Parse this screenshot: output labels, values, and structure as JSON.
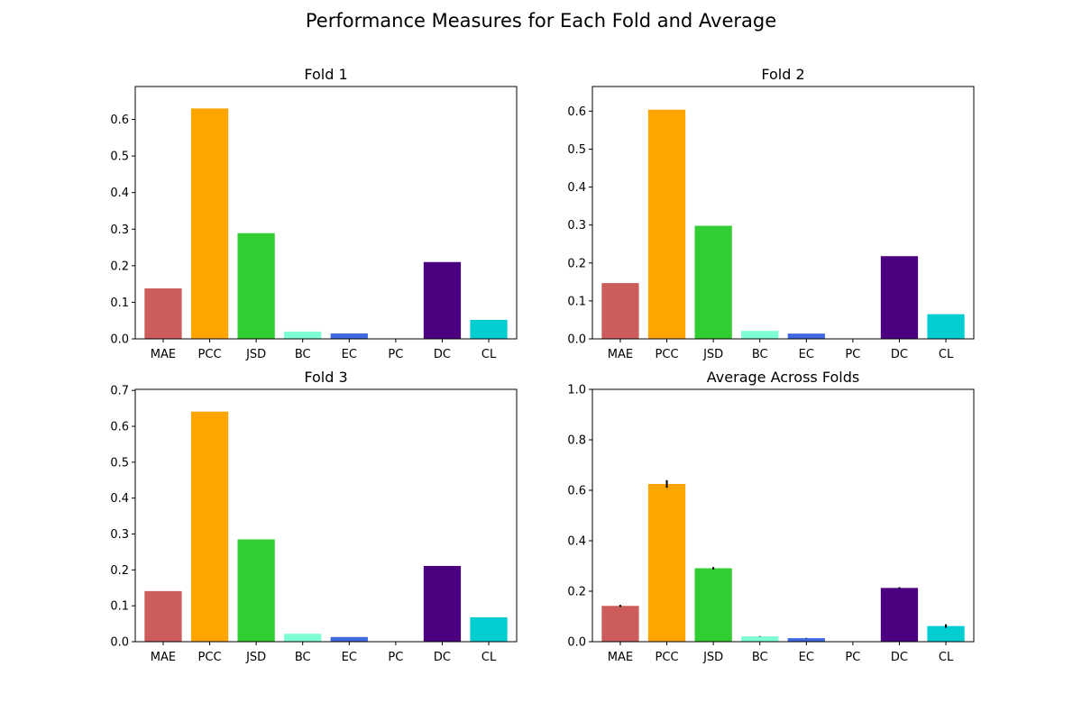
{
  "figure": {
    "title": "Performance Measures for Each Fold and Average"
  },
  "chart_data": [
    {
      "type": "bar",
      "title": "Fold 1",
      "xlabel": "",
      "ylabel": "",
      "categories": [
        "MAE",
        "PCC",
        "JSD",
        "BC",
        "EC",
        "PC",
        "DC",
        "CL"
      ],
      "colors": [
        "#cd5c5c",
        "#ffa500",
        "#32cd32",
        "#7fffd4",
        "#4169e1",
        "#ffc0cb",
        "#4b0082",
        "#00ced1"
      ],
      "values": [
        0.138,
        0.63,
        0.289,
        0.02,
        0.015,
        0.0,
        0.21,
        0.052
      ],
      "ylim": [
        0,
        0.69
      ],
      "yticks": [
        0.0,
        0.1,
        0.2,
        0.3,
        0.4,
        0.5,
        0.6
      ],
      "yticklabels": [
        "0.0",
        "0.1",
        "0.2",
        "0.3",
        "0.4",
        "0.5",
        "0.6"
      ],
      "grid": false,
      "legend": "none"
    },
    {
      "type": "bar",
      "title": "Fold 2",
      "xlabel": "",
      "ylabel": "",
      "categories": [
        "MAE",
        "PCC",
        "JSD",
        "BC",
        "EC",
        "PC",
        "DC",
        "CL"
      ],
      "colors": [
        "#cd5c5c",
        "#ffa500",
        "#32cd32",
        "#7fffd4",
        "#4169e1",
        "#ffc0cb",
        "#4b0082",
        "#00ced1"
      ],
      "values": [
        0.147,
        0.604,
        0.298,
        0.021,
        0.014,
        0.0,
        0.218,
        0.065
      ],
      "ylim": [
        0,
        0.665
      ],
      "yticks": [
        0.0,
        0.1,
        0.2,
        0.3,
        0.4,
        0.5,
        0.6
      ],
      "yticklabels": [
        "0.0",
        "0.1",
        "0.2",
        "0.3",
        "0.4",
        "0.5",
        "0.6"
      ],
      "grid": false,
      "legend": "none"
    },
    {
      "type": "bar",
      "title": "Fold 3",
      "xlabel": "",
      "ylabel": "",
      "categories": [
        "MAE",
        "PCC",
        "JSD",
        "BC",
        "EC",
        "PC",
        "DC",
        "CL"
      ],
      "colors": [
        "#cd5c5c",
        "#ffa500",
        "#32cd32",
        "#7fffd4",
        "#4169e1",
        "#ffc0cb",
        "#4b0082",
        "#00ced1"
      ],
      "values": [
        0.141,
        0.641,
        0.285,
        0.022,
        0.013,
        0.0,
        0.211,
        0.068
      ],
      "ylim": [
        0,
        0.703
      ],
      "yticks": [
        0.0,
        0.1,
        0.2,
        0.3,
        0.4,
        0.5,
        0.6,
        0.7
      ],
      "yticklabels": [
        "0.0",
        "0.1",
        "0.2",
        "0.3",
        "0.4",
        "0.5",
        "0.6",
        "0.7"
      ],
      "grid": false,
      "legend": "none"
    },
    {
      "type": "bar",
      "title": "Average Across Folds",
      "xlabel": "",
      "ylabel": "",
      "categories": [
        "MAE",
        "PCC",
        "JSD",
        "BC",
        "EC",
        "PC",
        "DC",
        "CL"
      ],
      "colors": [
        "#cd5c5c",
        "#ffa500",
        "#32cd32",
        "#7fffd4",
        "#4169e1",
        "#ffc0cb",
        "#4b0082",
        "#00ced1"
      ],
      "values": [
        0.142,
        0.625,
        0.291,
        0.021,
        0.014,
        0.0,
        0.213,
        0.062
      ],
      "errors": [
        0.004,
        0.015,
        0.005,
        0.001,
        0.001,
        0.0,
        0.003,
        0.007
      ],
      "ylim": [
        0,
        1.0
      ],
      "yticks": [
        0.0,
        0.2,
        0.4,
        0.6,
        0.8,
        1.0
      ],
      "yticklabels": [
        "0.0",
        "0.2",
        "0.4",
        "0.6",
        "0.8",
        "1.0"
      ],
      "grid": false,
      "legend": "none"
    }
  ]
}
